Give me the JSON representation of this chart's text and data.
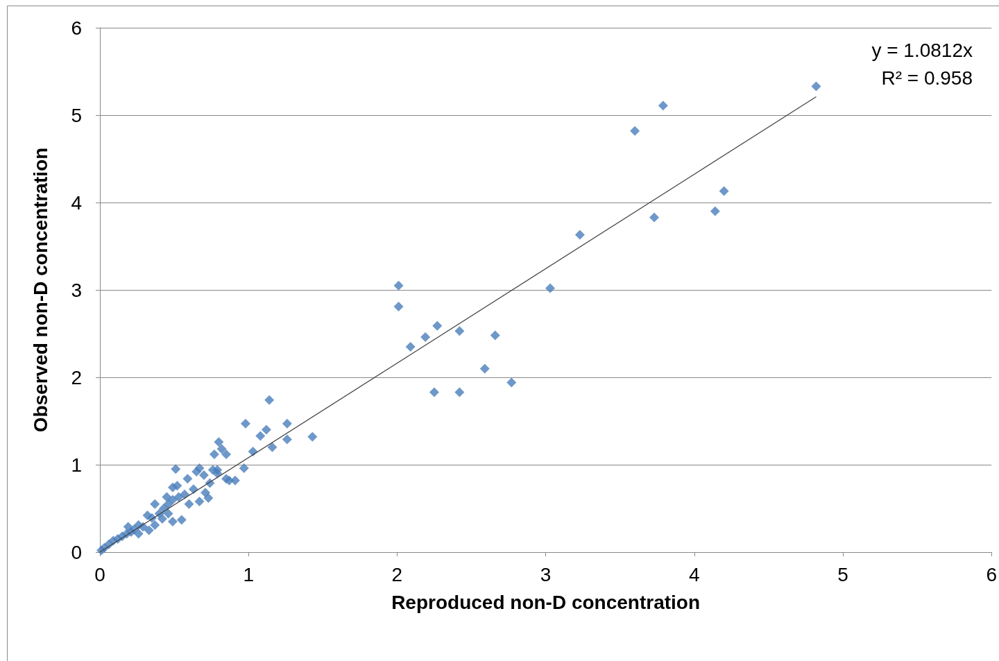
{
  "chart_data": {
    "type": "scatter",
    "xlabel": "Reproduced non-D concentration",
    "ylabel": "Observed non-D concentration",
    "xlim": [
      0,
      6
    ],
    "ylim": [
      0,
      6
    ],
    "xticks": [
      0,
      1,
      2,
      3,
      4,
      5,
      6
    ],
    "yticks": [
      0,
      1,
      2,
      3,
      4,
      5,
      6
    ],
    "grid": "y",
    "marker": "diamond",
    "annotations": [
      "y = 1.0812x",
      "R² = 0.958"
    ],
    "series": [
      {
        "color": "#4a7ebb",
        "x": [
          4.82,
          3.79,
          3.6,
          4.2,
          4.14,
          3.73,
          3.23,
          3.03,
          2.01,
          2.01,
          2.09,
          2.19,
          2.27,
          2.42,
          2.66,
          2.59,
          2.77,
          2.25,
          2.42,
          1.14,
          0.98,
          1.26,
          1.43,
          1.26,
          1.12,
          1.08,
          1.03,
          1.16,
          0.97,
          0.8,
          0.82,
          0.85,
          0.77,
          0.51,
          0.91,
          0.85,
          0.79,
          0.87,
          0.79,
          0.76,
          0.67,
          0.65,
          0.7,
          0.74,
          0.71,
          0.67,
          0.73,
          0.6,
          0.57,
          0.52,
          0.49,
          0.53,
          0.49,
          0.46,
          0.45,
          0.37,
          0.55,
          0.49,
          0.46,
          0.4,
          0.32,
          0.37,
          0.29,
          0.26,
          0.23,
          0.21,
          0.18,
          0.15,
          0.12,
          0.09,
          0.06,
          0.03,
          0.01,
          0.42,
          0.35,
          0.59,
          0.63,
          0.43,
          0.19,
          0.26,
          0.33
        ],
        "values": [
          5.33,
          5.11,
          4.82,
          4.13,
          3.9,
          3.83,
          3.63,
          3.02,
          3.05,
          2.81,
          2.35,
          2.46,
          2.59,
          2.53,
          2.48,
          2.1,
          1.94,
          1.83,
          1.83,
          1.74,
          1.47,
          1.47,
          1.32,
          1.29,
          1.4,
          1.33,
          1.15,
          1.2,
          0.96,
          1.26,
          1.18,
          1.12,
          1.12,
          0.95,
          0.82,
          0.84,
          0.9,
          0.82,
          0.94,
          0.94,
          0.96,
          0.92,
          0.88,
          0.79,
          0.68,
          0.58,
          0.62,
          0.55,
          0.66,
          0.76,
          0.74,
          0.63,
          0.6,
          0.55,
          0.63,
          0.55,
          0.37,
          0.35,
          0.44,
          0.44,
          0.42,
          0.31,
          0.29,
          0.31,
          0.26,
          0.23,
          0.21,
          0.18,
          0.15,
          0.13,
          0.09,
          0.05,
          0.02,
          0.38,
          0.39,
          0.84,
          0.72,
          0.5,
          0.29,
          0.21,
          0.25
        ]
      },
      {
        "type": "line",
        "color": "#404040",
        "marker": "none",
        "x": [
          0,
          4.82
        ],
        "values": [
          0,
          5.21
        ]
      }
    ]
  }
}
